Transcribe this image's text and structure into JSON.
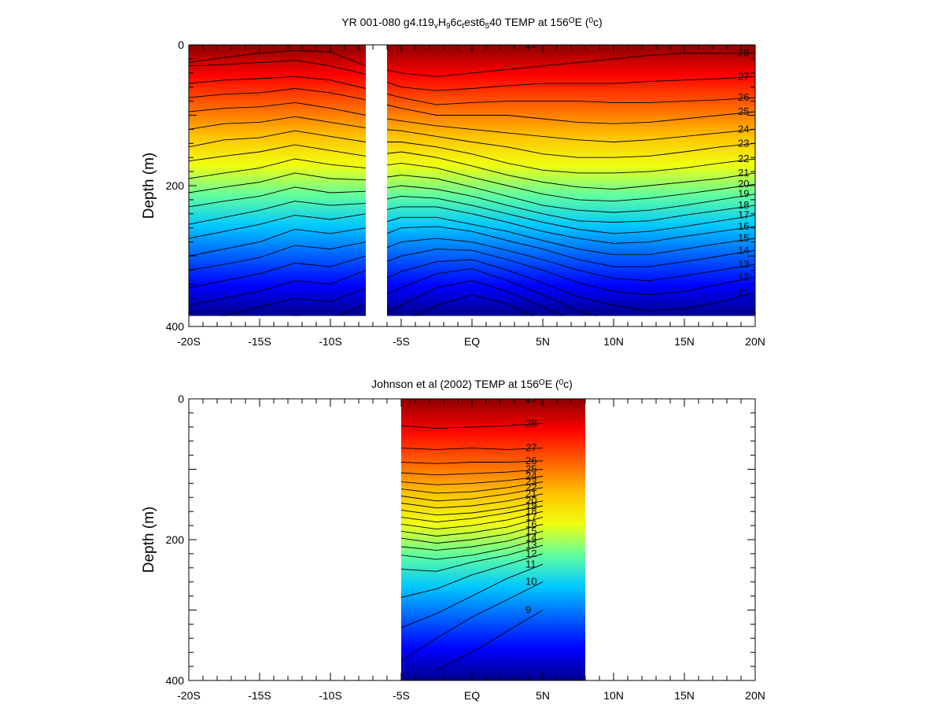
{
  "colors": {
    "colormap": [
      "#00008c",
      "#0000ff",
      "#0060ff",
      "#00c8ff",
      "#60ffa0",
      "#f0ff10",
      "#ffc000",
      "#ff6000",
      "#ff0000",
      "#8c0000"
    ],
    "contour_line": "#000000",
    "frame": "#000000",
    "background": "#ffffff"
  },
  "chart_data": [
    {
      "type": "heatmap",
      "subtype": "filled-contour depth section",
      "title_parts": [
        {
          "t": "YR 001-080 g4.t19"
        },
        {
          "t": "v",
          "sub": true
        },
        {
          "t": "H"
        },
        {
          "t": "9",
          "sub": true
        },
        {
          "t": "6c"
        },
        {
          "t": "t",
          "sub": true
        },
        {
          "t": "est6"
        },
        {
          "t": "5",
          "sub": true
        },
        {
          "t": "40 TEMP at 156"
        },
        {
          "t": "O",
          "sup": true
        },
        {
          "t": "E ("
        },
        {
          "t": "0",
          "sup": true
        },
        {
          "t": "c)"
        }
      ],
      "ylabel": "Depth (m)",
      "x_ticklabels": [
        "-20S",
        "-15S",
        "-10S",
        "-5S",
        "EQ",
        "5N",
        "10N",
        "15N",
        "20N"
      ],
      "y_ticklabels": [
        "0",
        "200",
        "400"
      ],
      "xlim": [
        -20,
        20
      ],
      "ylim": [
        400,
        0
      ],
      "data_extent": {
        "segments": [
          [
            -20,
            -7.5
          ],
          [
            -6,
            20
          ]
        ],
        "max_depth": 385
      },
      "value_range": [
        7,
        30
      ],
      "contour_interval": 1,
      "contours": [
        {
          "label": "29",
          "y": [
            null,
            null,
            null,
            null,
            0,
            0,
            0,
            0,
            0,
            0,
            0,
            null,
            null,
            null,
            null,
            null,
            null
          ]
        },
        {
          "label": "28",
          "y": [
            25,
            18,
            12,
            8,
            10,
            30,
            40,
            45,
            40,
            35,
            30,
            25,
            20,
            15,
            12,
            12,
            12
          ]
        },
        {
          "label": "27",
          "y": [
            30,
            28,
            25,
            22,
            30,
            42,
            60,
            65,
            62,
            58,
            55,
            55,
            55,
            52,
            50,
            48,
            45
          ]
        },
        {
          "label": "26",
          "y": [
            55,
            50,
            48,
            45,
            50,
            62,
            75,
            85,
            82,
            80,
            80,
            80,
            82,
            82,
            80,
            78,
            75
          ]
        },
        {
          "label": "25",
          "y": [
            75,
            70,
            68,
            62,
            68,
            78,
            90,
            100,
            100,
            100,
            105,
            110,
            112,
            110,
            105,
            100,
            95
          ]
        },
        {
          "label": "24",
          "y": [
            95,
            90,
            88,
            82,
            90,
            100,
            108,
            115,
            120,
            125,
            130,
            135,
            138,
            135,
            130,
            125,
            120
          ]
        },
        {
          "label": "23",
          "y": [
            120,
            112,
            110,
            102,
            110,
            118,
            122,
            130,
            138,
            145,
            155,
            160,
            160,
            158,
            152,
            145,
            140
          ]
        },
        {
          "label": "22",
          "y": [
            145,
            135,
            132,
            122,
            130,
            138,
            138,
            145,
            155,
            168,
            178,
            182,
            182,
            180,
            175,
            168,
            162
          ]
        },
        {
          "label": "21",
          "y": [
            165,
            158,
            152,
            142,
            150,
            158,
            152,
            160,
            172,
            185,
            195,
            202,
            205,
            200,
            195,
            190,
            182
          ]
        },
        {
          "label": "20",
          "y": [
            190,
            182,
            175,
            162,
            170,
            175,
            168,
            175,
            188,
            200,
            212,
            220,
            222,
            218,
            212,
            205,
            198
          ]
        },
        {
          "label": "19",
          "y": [
            210,
            202,
            195,
            182,
            190,
            192,
            185,
            190,
            202,
            215,
            228,
            235,
            238,
            235,
            228,
            220,
            212
          ]
        },
        {
          "label": "18",
          "y": [
            230,
            222,
            215,
            202,
            210,
            208,
            200,
            205,
            215,
            228,
            240,
            250,
            252,
            250,
            242,
            235,
            228
          ]
        },
        {
          "label": "17",
          "y": [
            255,
            245,
            235,
            222,
            228,
            225,
            215,
            218,
            228,
            240,
            252,
            262,
            268,
            265,
            258,
            250,
            242
          ]
        },
        {
          "label": "16",
          "y": [
            275,
            265,
            255,
            242,
            248,
            240,
            230,
            230,
            240,
            252,
            265,
            275,
            282,
            280,
            272,
            265,
            258
          ]
        },
        {
          "label": "15",
          "y": [
            300,
            290,
            280,
            262,
            268,
            260,
            245,
            245,
            255,
            265,
            278,
            290,
            298,
            298,
            290,
            282,
            275
          ]
        },
        {
          "label": "14",
          "y": [
            320,
            312,
            302,
            285,
            290,
            280,
            260,
            258,
            265,
            278,
            290,
            305,
            315,
            315,
            308,
            300,
            292
          ]
        },
        {
          "label": "13",
          "y": [
            345,
            335,
            325,
            310,
            315,
            300,
            280,
            275,
            280,
            292,
            305,
            320,
            332,
            335,
            328,
            320,
            312
          ]
        },
        {
          "label": "12",
          "y": [
            370,
            360,
            350,
            335,
            340,
            320,
            300,
            290,
            292,
            305,
            320,
            338,
            350,
            355,
            350,
            340,
            330
          ]
        },
        {
          "label": "11",
          "y": [
            390,
            385,
            372,
            360,
            365,
            345,
            322,
            308,
            305,
            320,
            338,
            358,
            370,
            378,
            375,
            365,
            352
          ]
        },
        {
          "label": "10",
          "y": [
            null,
            null,
            395,
            385,
            390,
            368,
            345,
            325,
            318,
            335,
            355,
            378,
            392,
            null,
            null,
            null,
            null
          ]
        },
        {
          "label": "9",
          "y": [
            null,
            null,
            null,
            null,
            null,
            390,
            370,
            345,
            335,
            350,
            372,
            395,
            null,
            null,
            null,
            null,
            null
          ]
        },
        {
          "label": "8",
          "y": [
            null,
            null,
            null,
            null,
            null,
            null,
            395,
            370,
            355,
            368,
            392,
            null,
            null,
            null,
            null,
            null,
            null
          ]
        }
      ]
    },
    {
      "type": "heatmap",
      "subtype": "filled-contour depth section",
      "title_parts": [
        {
          "t": "Johnson et al (2002) TEMP at 156"
        },
        {
          "t": "O",
          "sup": true
        },
        {
          "t": "E ("
        },
        {
          "t": "0",
          "sup": true
        },
        {
          "t": "c)"
        }
      ],
      "ylabel": "Depth (m)",
      "x_ticklabels": [
        "-20S",
        "-15S",
        "-10S",
        "-5S",
        "EQ",
        "5N",
        "10N",
        "15N",
        "20N"
      ],
      "y_ticklabels": [
        "0",
        "200",
        "400"
      ],
      "xlim": [
        -20,
        20
      ],
      "ylim": [
        400,
        0
      ],
      "data_extent": {
        "segments": [
          [
            -5,
            8
          ]
        ],
        "max_depth": 400
      },
      "value_range": [
        7,
        30
      ],
      "contour_interval": 1,
      "contours": [
        {
          "label": "29",
          "y": [
            null,
            null,
            null,
            null,
            0,
            0,
            0,
            0,
            0,
            0,
            0,
            null,
            null,
            null,
            null,
            null,
            null
          ]
        },
        {
          "label": "28",
          "y": [
            null,
            null,
            null,
            null,
            45,
            40,
            38,
            42,
            40,
            38,
            35,
            null,
            null,
            null,
            null,
            null,
            null
          ]
        },
        {
          "label": "27",
          "y": [
            null,
            null,
            null,
            null,
            75,
            72,
            70,
            72,
            70,
            72,
            70,
            null,
            null,
            null,
            null,
            null,
            null
          ]
        },
        {
          "label": "26",
          "y": [
            null,
            null,
            null,
            null,
            95,
            92,
            90,
            92,
            90,
            90,
            88,
            null,
            null,
            null,
            null,
            null,
            null
          ]
        },
        {
          "label": "25",
          "y": [
            null,
            null,
            null,
            null,
            110,
            108,
            105,
            108,
            106,
            104,
            100,
            null,
            null,
            null,
            null,
            null,
            null
          ]
        },
        {
          "label": "24",
          "y": [
            null,
            null,
            null,
            null,
            125,
            122,
            118,
            122,
            120,
            116,
            110,
            null,
            null,
            null,
            null,
            null,
            null
          ]
        },
        {
          "label": "23",
          "y": [
            null,
            null,
            null,
            null,
            135,
            132,
            128,
            134,
            132,
            126,
            118,
            null,
            null,
            null,
            null,
            null,
            null
          ]
        },
        {
          "label": "22",
          "y": [
            null,
            null,
            null,
            null,
            145,
            142,
            138,
            145,
            142,
            135,
            126,
            null,
            null,
            null,
            null,
            null,
            null
          ]
        },
        {
          "label": "21",
          "y": [
            null,
            null,
            null,
            null,
            155,
            152,
            148,
            155,
            152,
            145,
            135,
            null,
            null,
            null,
            null,
            null,
            null
          ]
        },
        {
          "label": "20",
          "y": [
            null,
            null,
            null,
            null,
            165,
            162,
            158,
            165,
            162,
            155,
            145,
            null,
            null,
            null,
            null,
            null,
            null
          ]
        },
        {
          "label": "19",
          "y": [
            null,
            null,
            null,
            null,
            172,
            170,
            168,
            175,
            170,
            162,
            152,
            null,
            null,
            null,
            null,
            null,
            null
          ]
        },
        {
          "label": "18",
          "y": [
            null,
            null,
            null,
            null,
            178,
            178,
            178,
            185,
            180,
            172,
            160,
            null,
            null,
            null,
            null,
            null,
            null
          ]
        },
        {
          "label": "17",
          "y": [
            null,
            null,
            null,
            null,
            185,
            188,
            188,
            195,
            190,
            182,
            168,
            null,
            null,
            null,
            null,
            null,
            null
          ]
        },
        {
          "label": "16",
          "y": [
            null,
            null,
            null,
            null,
            192,
            198,
            198,
            205,
            200,
            192,
            178,
            null,
            null,
            null,
            null,
            null,
            null
          ]
        },
        {
          "label": "15",
          "y": [
            null,
            null,
            null,
            null,
            200,
            210,
            210,
            215,
            210,
            202,
            188,
            null,
            null,
            null,
            null,
            null,
            null
          ]
        },
        {
          "label": "14",
          "y": [
            null,
            null,
            null,
            null,
            210,
            222,
            222,
            228,
            222,
            212,
            198,
            null,
            null,
            null,
            null,
            null,
            null
          ]
        },
        {
          "label": "13",
          "y": [
            null,
            null,
            null,
            null,
            235,
            248,
            242,
            245,
            232,
            222,
            208,
            null,
            null,
            null,
            null,
            null,
            null
          ]
        },
        {
          "label": "12",
          "y": [
            null,
            null,
            null,
            null,
            275,
            290,
            282,
            270,
            250,
            235,
            220,
            null,
            null,
            null,
            null,
            null,
            null
          ]
        },
        {
          "label": "11",
          "y": [
            null,
            null,
            null,
            null,
            310,
            330,
            325,
            305,
            280,
            255,
            235,
            null,
            null,
            null,
            null,
            null,
            null
          ]
        },
        {
          "label": "10",
          "y": [
            null,
            null,
            null,
            null,
            345,
            368,
            372,
            340,
            310,
            285,
            260,
            null,
            null,
            null,
            null,
            null,
            null
          ]
        },
        {
          "label": "9",
          "y": [
            null,
            null,
            null,
            null,
            380,
            395,
            null,
            385,
            360,
            330,
            300,
            null,
            null,
            null,
            null,
            null,
            null
          ]
        }
      ]
    }
  ]
}
